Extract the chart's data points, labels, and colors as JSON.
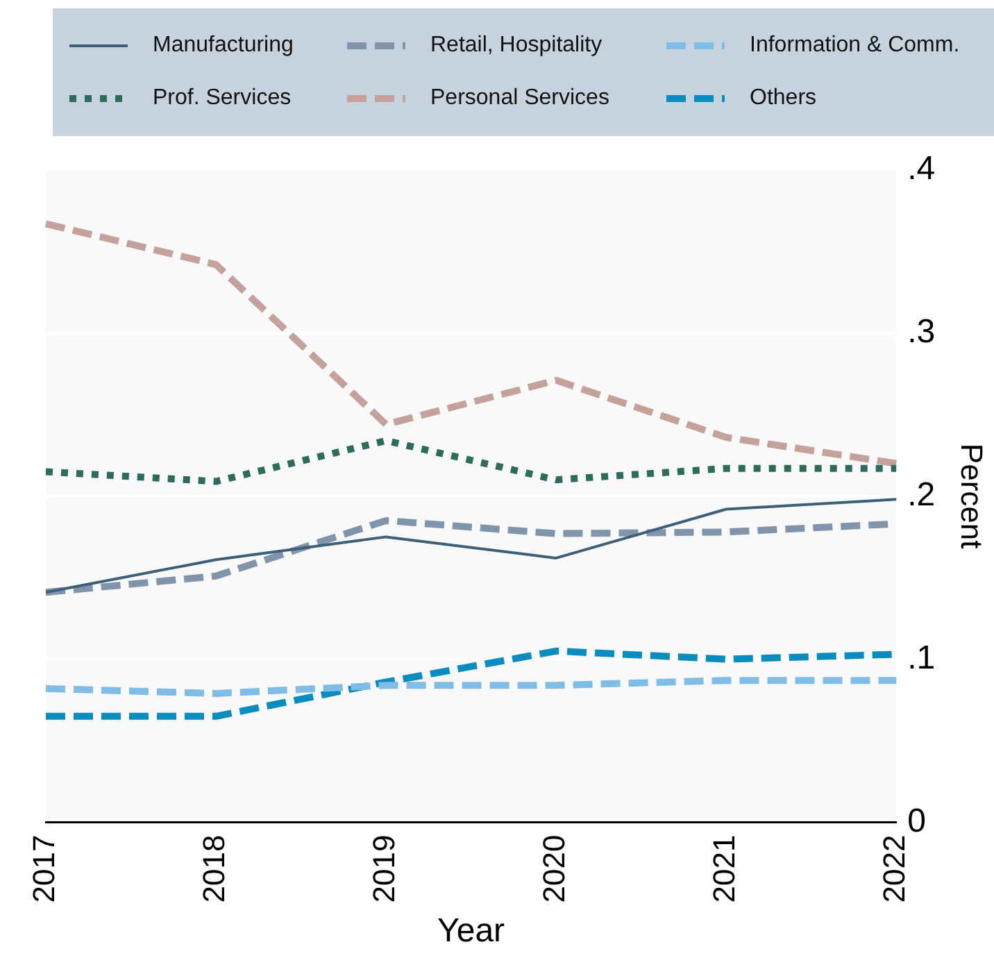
{
  "chart_data": {
    "type": "line",
    "xlabel": "Year",
    "ylabel": "Percent",
    "categories": [
      "2017",
      "2018",
      "2019",
      "2020",
      "2021",
      "2022"
    ],
    "series": [
      {
        "name": "Manufacturing",
        "color": "#3e5f78",
        "line_style": "solid",
        "values": [
          0.141,
          0.161,
          0.175,
          0.162,
          0.192,
          0.198
        ]
      },
      {
        "name": "Retail, Hospitality",
        "color": "#8094ab",
        "line_style": "dashed",
        "values": [
          0.141,
          0.151,
          0.185,
          0.177,
          0.178,
          0.183
        ]
      },
      {
        "name": "Information & Comm.",
        "color": "#7fbde6",
        "line_style": "dashed",
        "values": [
          0.082,
          0.079,
          0.084,
          0.084,
          0.087,
          0.087
        ]
      },
      {
        "name": "Prof. Services",
        "color": "#2d6b5e",
        "line_style": "dotted",
        "values": [
          0.215,
          0.209,
          0.234,
          0.21,
          0.217,
          0.217
        ]
      },
      {
        "name": "Personal Services",
        "color": "#c4a29b",
        "line_style": "dashed",
        "values": [
          0.367,
          0.342,
          0.244,
          0.271,
          0.236,
          0.22
        ]
      },
      {
        "name": "Others",
        "color": "#0a8cbf",
        "line_style": "dashed",
        "values": [
          0.065,
          0.065,
          0.086,
          0.105,
          0.1,
          0.103
        ]
      }
    ],
    "ylim": [
      0,
      0.4
    ],
    "yticks": [
      0,
      {
        "value": 0.1,
        "label": ".1"
      },
      {
        "value": 0.2,
        "label": ".2"
      },
      {
        "value": 0.3,
        "label": ".3"
      },
      {
        "value": 0.4,
        "label": ".4"
      }
    ],
    "grid": "y",
    "legend": "top",
    "marker": "none"
  }
}
